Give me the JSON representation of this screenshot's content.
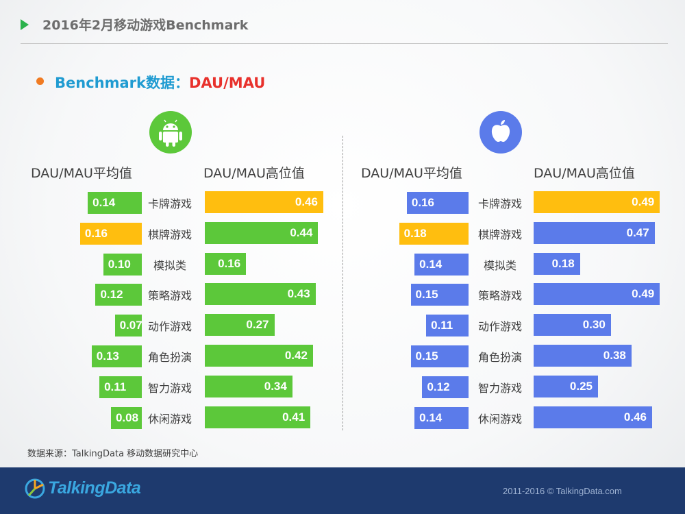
{
  "header": {
    "title": "2016年2月移动游戏Benchmark"
  },
  "subtitle": {
    "prefix": "Benchmark数据：",
    "metric": "DAU/MAU"
  },
  "colors": {
    "android": "#5cc83a",
    "ios": "#5b7bea",
    "highlight": "#ffbe0f",
    "subtitle_blue": "#1f9bd1",
    "subtitle_red": "#e8312c",
    "footer_bg": "#1e3a6e"
  },
  "icons": {
    "android": "android-robot-icon",
    "ios": "apple-logo-icon"
  },
  "panels": {
    "android": {
      "avg_header": "DAU/MAU平均值",
      "high_header": "DAU/MAU高位值"
    },
    "ios": {
      "avg_header": "DAU/MAU平均值",
      "high_header": "DAU/MAU高位值"
    }
  },
  "chart_data": [
    {
      "type": "bar",
      "platform": "Android",
      "categories": [
        "卡牌游戏",
        "棋牌游戏",
        "模拟类",
        "策略游戏",
        "动作游戏",
        "角色扮演",
        "智力游戏",
        "休闲游戏"
      ],
      "series": [
        {
          "name": "DAU/MAU平均值",
          "values": [
            0.14,
            0.16,
            0.1,
            0.12,
            0.07,
            0.13,
            0.11,
            0.08
          ],
          "labels": [
            "0.14",
            "0.16",
            "0.10",
            "0.12",
            "0.07",
            "0.13",
            "0.11",
            "0.08"
          ],
          "highlight_index": 1
        },
        {
          "name": "DAU/MAU高位值",
          "values": [
            0.46,
            0.44,
            0.16,
            0.43,
            0.27,
            0.42,
            0.34,
            0.41
          ],
          "labels": [
            "0.46",
            "0.44",
            "0.16",
            "0.43",
            "0.27",
            "0.42",
            "0.34",
            "0.41"
          ],
          "highlight_index": 0
        }
      ]
    },
    {
      "type": "bar",
      "platform": "iOS",
      "categories": [
        "卡牌游戏",
        "棋牌游戏",
        "模拟类",
        "策略游戏",
        "动作游戏",
        "角色扮演",
        "智力游戏",
        "休闲游戏"
      ],
      "series": [
        {
          "name": "DAU/MAU平均值",
          "values": [
            0.16,
            0.18,
            0.14,
            0.15,
            0.11,
            0.15,
            0.12,
            0.14
          ],
          "labels": [
            "0.16",
            "0.18",
            "0.14",
            "0.15",
            "0.11",
            "0.15",
            "0.12",
            "0.14"
          ],
          "highlight_index": 1
        },
        {
          "name": "DAU/MAU高位值",
          "values": [
            0.49,
            0.47,
            0.18,
            0.49,
            0.3,
            0.38,
            0.25,
            0.46
          ],
          "labels": [
            "0.49",
            "0.47",
            "0.18",
            "0.49",
            "0.30",
            "0.38",
            "0.25",
            "0.46"
          ],
          "highlight_index": 0
        }
      ]
    }
  ],
  "source": "数据来源：TalkingData 移动数据研究中心",
  "footer": {
    "logo": "TalkingData",
    "copyright": "2011-2016 © TalkingData.com"
  }
}
